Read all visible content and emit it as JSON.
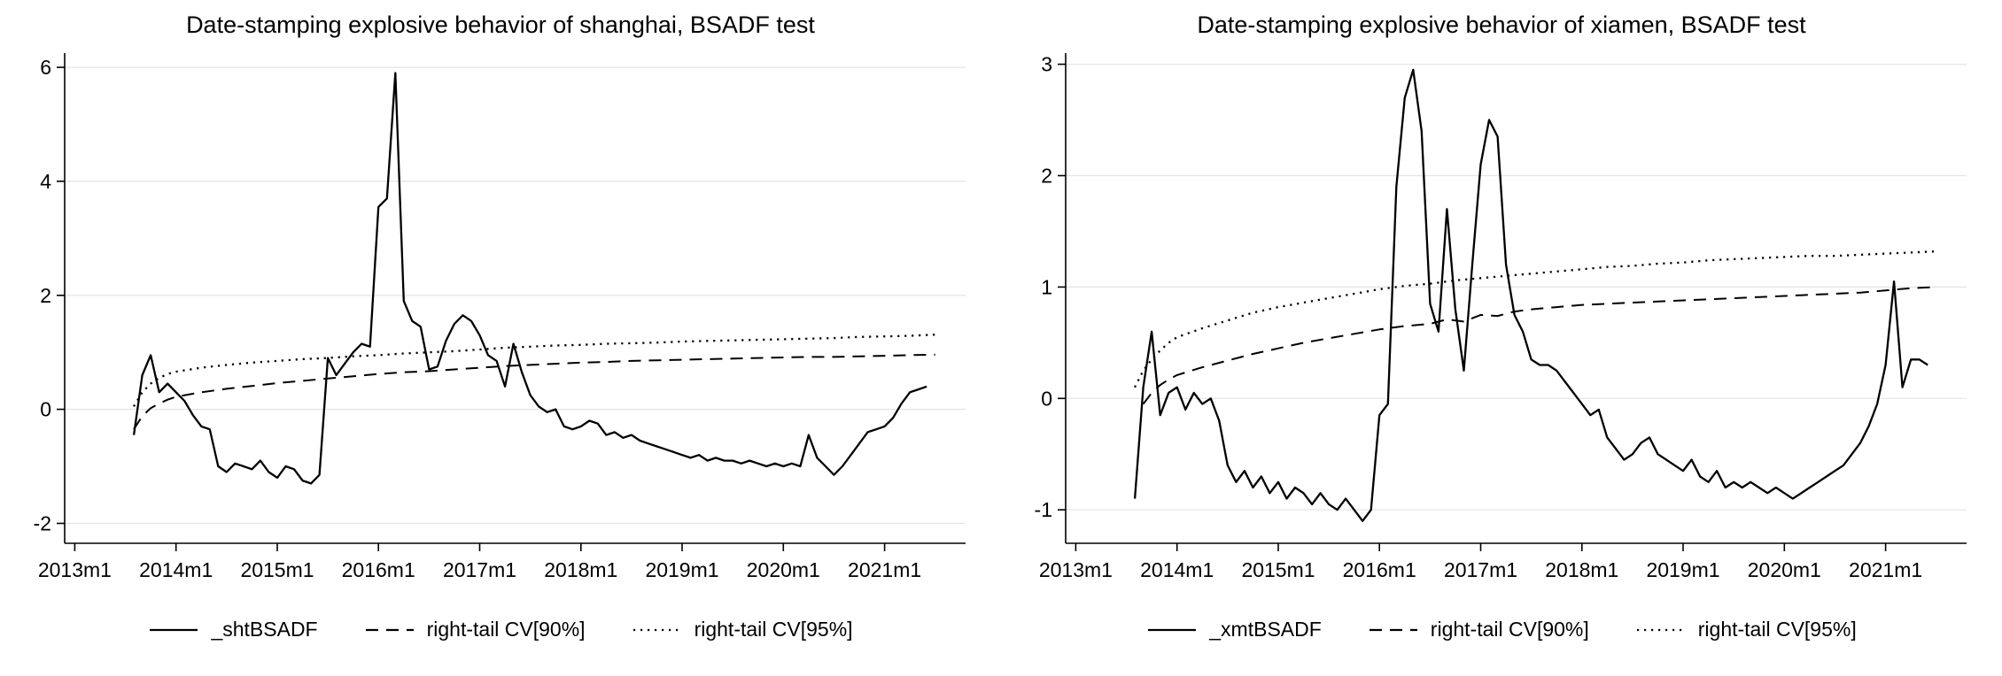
{
  "figure": {
    "background": "#ffffff",
    "line_color": "#000000",
    "grid_color": "#e4e4e4"
  },
  "chart_data": [
    {
      "type": "line",
      "title": "Date-stamping explosive behavior of shanghai, BSADF test",
      "xlabel": "",
      "ylabel": "",
      "xlim": [
        2012.9,
        2021.8
      ],
      "ylim": [
        -2.35,
        6.25
      ],
      "yticks": [
        -2,
        0,
        2,
        4,
        6
      ],
      "xticks": [
        {
          "value": 2013,
          "label": "2013m1"
        },
        {
          "value": 2014,
          "label": "2014m1"
        },
        {
          "value": 2015,
          "label": "2015m1"
        },
        {
          "value": 2016,
          "label": "2016m1"
        },
        {
          "value": 2017,
          "label": "2017m1"
        },
        {
          "value": 2018,
          "label": "2018m1"
        },
        {
          "value": 2019,
          "label": "2019m1"
        },
        {
          "value": 2020,
          "label": "2020m1"
        },
        {
          "value": 2021,
          "label": "2021m1"
        }
      ],
      "grid": "horizontal",
      "legend_position": "bottom",
      "series": [
        {
          "name": "_shtBSADF",
          "style": "solid",
          "frequency": "monthly",
          "start": {
            "year": 2013,
            "month": 8
          },
          "values": [
            -0.45,
            0.6,
            0.95,
            0.3,
            0.45,
            0.3,
            0.15,
            -0.1,
            -0.3,
            -0.35,
            -1.0,
            -1.1,
            -0.95,
            -1.0,
            -1.05,
            -0.9,
            -1.1,
            -1.2,
            -1.0,
            -1.05,
            -1.25,
            -1.3,
            -1.15,
            0.9,
            0.6,
            0.8,
            1.0,
            1.15,
            1.1,
            3.55,
            3.7,
            5.9,
            1.9,
            1.55,
            1.45,
            0.7,
            0.75,
            1.2,
            1.5,
            1.65,
            1.55,
            1.3,
            0.95,
            0.85,
            0.4,
            1.15,
            0.65,
            0.25,
            0.05,
            -0.05,
            0.0,
            -0.3,
            -0.35,
            -0.3,
            -0.2,
            -0.25,
            -0.45,
            -0.4,
            -0.5,
            -0.45,
            -0.55,
            -0.6,
            -0.65,
            -0.7,
            -0.75,
            -0.8,
            -0.85,
            -0.8,
            -0.9,
            -0.85,
            -0.9,
            -0.9,
            -0.95,
            -0.9,
            -0.95,
            -1.0,
            -0.95,
            -1.0,
            -0.95,
            -1.0,
            -0.45,
            -0.85,
            -1.0,
            -1.15,
            -1.0,
            -0.8,
            -0.6,
            -0.4,
            -0.35,
            -0.3,
            -0.15,
            0.1,
            0.3,
            0.35,
            0.4
          ]
        },
        {
          "name": "right-tail CV[90%]",
          "style": "dashed",
          "points": [
            [
              2013.583,
              -0.35
            ],
            [
              2013.667,
              -0.12
            ],
            [
              2013.75,
              0.02
            ],
            [
              2013.833,
              0.1
            ],
            [
              2013.917,
              0.17
            ],
            [
              2014.0,
              0.22
            ],
            [
              2014.25,
              0.3
            ],
            [
              2014.5,
              0.36
            ],
            [
              2014.75,
              0.41
            ],
            [
              2015.0,
              0.46
            ],
            [
              2015.25,
              0.5
            ],
            [
              2015.5,
              0.54
            ],
            [
              2015.75,
              0.58
            ],
            [
              2016.0,
              0.62
            ],
            [
              2016.25,
              0.65
            ],
            [
              2016.5,
              0.67
            ],
            [
              2016.75,
              0.7
            ],
            [
              2017.0,
              0.73
            ],
            [
              2017.25,
              0.76
            ],
            [
              2017.5,
              0.78
            ],
            [
              2017.75,
              0.8
            ],
            [
              2018.0,
              0.82
            ],
            [
              2018.25,
              0.83
            ],
            [
              2018.5,
              0.85
            ],
            [
              2018.75,
              0.86
            ],
            [
              2019.0,
              0.87
            ],
            [
              2019.25,
              0.88
            ],
            [
              2019.5,
              0.89
            ],
            [
              2019.75,
              0.9
            ],
            [
              2020.0,
              0.91
            ],
            [
              2020.25,
              0.92
            ],
            [
              2020.5,
              0.92
            ],
            [
              2020.75,
              0.93
            ],
            [
              2021.0,
              0.94
            ],
            [
              2021.25,
              0.95
            ],
            [
              2021.5,
              0.96
            ]
          ]
        },
        {
          "name": "right-tail CV[95%]",
          "style": "dotted",
          "points": [
            [
              2013.583,
              0.05
            ],
            [
              2013.667,
              0.3
            ],
            [
              2013.75,
              0.45
            ],
            [
              2013.833,
              0.55
            ],
            [
              2013.917,
              0.62
            ],
            [
              2014.0,
              0.66
            ],
            [
              2014.25,
              0.73
            ],
            [
              2014.5,
              0.78
            ],
            [
              2014.75,
              0.82
            ],
            [
              2015.0,
              0.85
            ],
            [
              2015.25,
              0.88
            ],
            [
              2015.5,
              0.9
            ],
            [
              2015.75,
              0.93
            ],
            [
              2016.0,
              0.95
            ],
            [
              2016.25,
              0.98
            ],
            [
              2016.5,
              1.0
            ],
            [
              2016.75,
              1.02
            ],
            [
              2017.0,
              1.05
            ],
            [
              2017.25,
              1.08
            ],
            [
              2017.5,
              1.1
            ],
            [
              2017.75,
              1.12
            ],
            [
              2018.0,
              1.13
            ],
            [
              2018.25,
              1.15
            ],
            [
              2018.5,
              1.16
            ],
            [
              2018.75,
              1.17
            ],
            [
              2019.0,
              1.19
            ],
            [
              2019.25,
              1.2
            ],
            [
              2019.5,
              1.21
            ],
            [
              2019.75,
              1.22
            ],
            [
              2020.0,
              1.23
            ],
            [
              2020.25,
              1.24
            ],
            [
              2020.5,
              1.25
            ],
            [
              2020.75,
              1.27
            ],
            [
              2021.0,
              1.28
            ],
            [
              2021.25,
              1.29
            ],
            [
              2021.5,
              1.31
            ]
          ]
        }
      ]
    },
    {
      "type": "line",
      "title": "Date-stamping explosive behavior of xiamen, BSADF test",
      "xlabel": "",
      "ylabel": "",
      "xlim": [
        2012.9,
        2021.8
      ],
      "ylim": [
        -1.3,
        3.1
      ],
      "yticks": [
        -1,
        0,
        1,
        2,
        3
      ],
      "xticks": [
        {
          "value": 2013,
          "label": "2013m1"
        },
        {
          "value": 2014,
          "label": "2014m1"
        },
        {
          "value": 2015,
          "label": "2015m1"
        },
        {
          "value": 2016,
          "label": "2016m1"
        },
        {
          "value": 2017,
          "label": "2017m1"
        },
        {
          "value": 2018,
          "label": "2018m1"
        },
        {
          "value": 2019,
          "label": "2019m1"
        },
        {
          "value": 2020,
          "label": "2020m1"
        },
        {
          "value": 2021,
          "label": "2021m1"
        }
      ],
      "grid": "horizontal",
      "legend_position": "bottom",
      "series": [
        {
          "name": "_xmtBSADF",
          "style": "solid",
          "frequency": "monthly",
          "start": {
            "year": 2013,
            "month": 8
          },
          "values": [
            -0.9,
            0.1,
            0.6,
            -0.15,
            0.05,
            0.1,
            -0.1,
            0.05,
            -0.05,
            0.0,
            -0.2,
            -0.6,
            -0.75,
            -0.65,
            -0.8,
            -0.7,
            -0.85,
            -0.75,
            -0.9,
            -0.8,
            -0.85,
            -0.95,
            -0.85,
            -0.95,
            -1.0,
            -0.9,
            -1.0,
            -1.1,
            -1.0,
            -0.15,
            -0.05,
            1.9,
            2.7,
            2.95,
            2.4,
            0.85,
            0.6,
            1.7,
            0.8,
            0.25,
            1.2,
            2.1,
            2.5,
            2.35,
            1.2,
            0.75,
            0.6,
            0.35,
            0.3,
            0.3,
            0.25,
            0.15,
            0.05,
            -0.05,
            -0.15,
            -0.1,
            -0.35,
            -0.45,
            -0.55,
            -0.5,
            -0.4,
            -0.35,
            -0.5,
            -0.55,
            -0.6,
            -0.65,
            -0.55,
            -0.7,
            -0.75,
            -0.65,
            -0.8,
            -0.75,
            -0.8,
            -0.75,
            -0.8,
            -0.85,
            -0.8,
            -0.85,
            -0.9,
            -0.85,
            -0.8,
            -0.75,
            -0.7,
            -0.65,
            -0.6,
            -0.5,
            -0.4,
            -0.25,
            -0.05,
            0.3,
            1.05,
            0.1,
            0.35,
            0.35,
            0.3
          ]
        },
        {
          "name": "right-tail CV[90%]",
          "style": "dashed",
          "points": [
            [
              2013.667,
              -0.05
            ],
            [
              2013.75,
              0.05
            ],
            [
              2013.833,
              0.12
            ],
            [
              2013.917,
              0.17
            ],
            [
              2014.0,
              0.21
            ],
            [
              2014.25,
              0.28
            ],
            [
              2014.5,
              0.34
            ],
            [
              2014.75,
              0.4
            ],
            [
              2015.0,
              0.45
            ],
            [
              2015.25,
              0.5
            ],
            [
              2015.5,
              0.54
            ],
            [
              2015.75,
              0.58
            ],
            [
              2016.0,
              0.62
            ],
            [
              2016.25,
              0.65
            ],
            [
              2016.5,
              0.67
            ],
            [
              2016.667,
              0.71
            ],
            [
              2016.833,
              0.69
            ],
            [
              2017.0,
              0.75
            ],
            [
              2017.167,
              0.74
            ],
            [
              2017.333,
              0.78
            ],
            [
              2017.5,
              0.8
            ],
            [
              2017.75,
              0.82
            ],
            [
              2018.0,
              0.84
            ],
            [
              2018.25,
              0.85
            ],
            [
              2018.5,
              0.86
            ],
            [
              2018.75,
              0.87
            ],
            [
              2019.0,
              0.88
            ],
            [
              2019.25,
              0.89
            ],
            [
              2019.5,
              0.9
            ],
            [
              2019.75,
              0.91
            ],
            [
              2020.0,
              0.92
            ],
            [
              2020.25,
              0.93
            ],
            [
              2020.5,
              0.94
            ],
            [
              2020.75,
              0.95
            ],
            [
              2021.0,
              0.97
            ],
            [
              2021.25,
              0.99
            ],
            [
              2021.5,
              1.0
            ]
          ]
        },
        {
          "name": "right-tail CV[95%]",
          "style": "dotted",
          "points": [
            [
              2013.583,
              0.1
            ],
            [
              2013.667,
              0.25
            ],
            [
              2013.75,
              0.35
            ],
            [
              2013.833,
              0.43
            ],
            [
              2013.917,
              0.5
            ],
            [
              2014.0,
              0.55
            ],
            [
              2014.25,
              0.63
            ],
            [
              2014.5,
              0.7
            ],
            [
              2014.75,
              0.77
            ],
            [
              2015.0,
              0.82
            ],
            [
              2015.25,
              0.86
            ],
            [
              2015.5,
              0.9
            ],
            [
              2015.75,
              0.94
            ],
            [
              2016.0,
              0.98
            ],
            [
              2016.25,
              1.01
            ],
            [
              2016.5,
              1.03
            ],
            [
              2016.75,
              1.06
            ],
            [
              2017.0,
              1.08
            ],
            [
              2017.25,
              1.1
            ],
            [
              2017.5,
              1.12
            ],
            [
              2017.75,
              1.14
            ],
            [
              2018.0,
              1.16
            ],
            [
              2018.25,
              1.18
            ],
            [
              2018.5,
              1.19
            ],
            [
              2018.75,
              1.21
            ],
            [
              2019.0,
              1.22
            ],
            [
              2019.25,
              1.24
            ],
            [
              2019.5,
              1.25
            ],
            [
              2019.75,
              1.26
            ],
            [
              2020.0,
              1.27
            ],
            [
              2020.25,
              1.28
            ],
            [
              2020.5,
              1.28
            ],
            [
              2020.75,
              1.29
            ],
            [
              2021.0,
              1.3
            ],
            [
              2021.25,
              1.31
            ],
            [
              2021.5,
              1.32
            ]
          ]
        }
      ]
    }
  ]
}
